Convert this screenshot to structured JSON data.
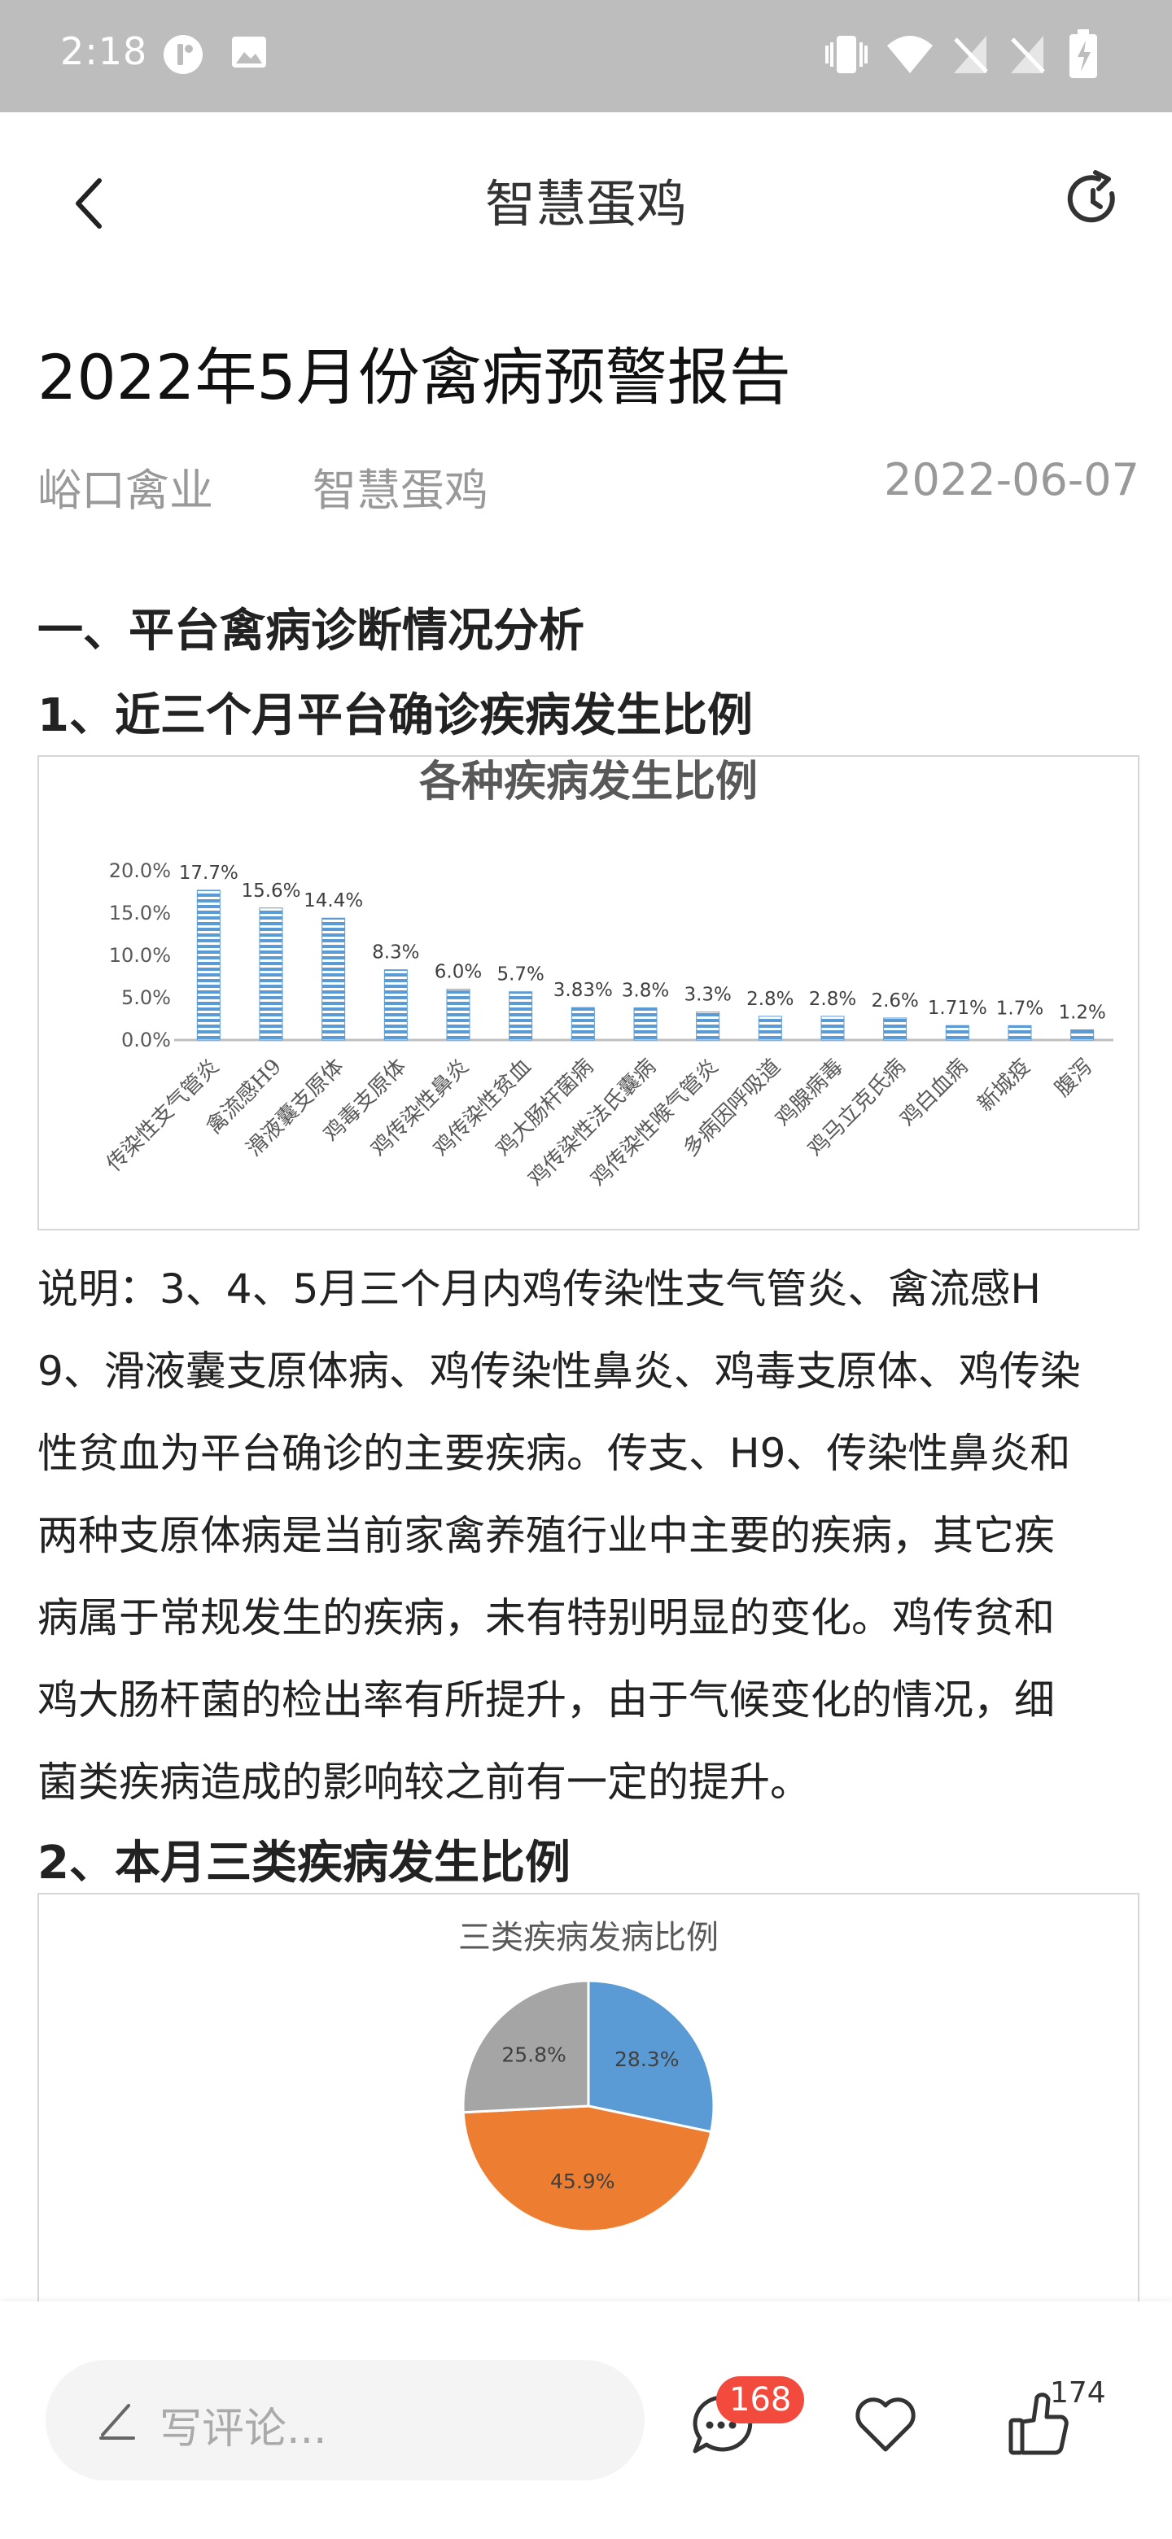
{
  "status_bar": {
    "time": "2:18"
  },
  "app_bar": {
    "title": "智慧蛋鸡"
  },
  "article": {
    "title": "2022年5月份禽病预警报告",
    "source": "峪口禽业",
    "channel": "智慧蛋鸡",
    "date": "2022-06-07",
    "section1_heading": "一、平台禽病诊断情况分析",
    "sub1_heading": "1、近三个月平台确诊疾病发生比例",
    "paragraph_lines": [
      "说明：3、4、5月三个月内鸡传染性支气管炎、禽流感H",
      "9、滑液囊支原体病、鸡传染性鼻炎、鸡毒支原体、鸡传染",
      "性贫血为平台确诊的主要疾病。传支、H9、传染性鼻炎和",
      "两种支原体病是当前家禽养殖行业中主要的疾病，其它疾",
      "病属于常规发生的疾病，未有特别明显的变化。鸡传贫和",
      "鸡大肠杆菌的检出率有所提升，由于气候变化的情况，细",
      "菌类疾病造成的影响较之前有一定的提升。"
    ],
    "sub2_heading": "2、本月三类疾病发生比例"
  },
  "chart_data": [
    {
      "type": "bar",
      "title": "各种疾病发生比例",
      "categories": [
        "传染性支气管炎",
        "禽流感H9",
        "滑液囊支原体",
        "鸡毒支原体",
        "鸡传染性鼻炎",
        "鸡传染性贫血",
        "鸡大肠杆菌病",
        "鸡传染性法氏囊病",
        "鸡传染性喉气管炎",
        "多病因呼吸道",
        "鸡腺病毒",
        "鸡马立克氏病",
        "鸡白血病",
        "新城疫",
        "腹泻"
      ],
      "values": [
        17.7,
        15.6,
        14.4,
        8.3,
        6.0,
        5.7,
        3.83,
        3.8,
        3.3,
        2.8,
        2.8,
        2.6,
        1.71,
        1.7,
        1.2
      ],
      "value_labels": [
        "17.7%",
        "15.6%",
        "14.4%",
        "8.3%",
        "6.0%",
        "5.7%",
        "3.83%",
        "3.8%",
        "3.3%",
        "2.8%",
        "2.8%",
        "2.6%",
        "1.71%",
        "1.7%",
        "1.2%"
      ],
      "y_ticks": [
        "0.0%",
        "5.0%",
        "10.0%",
        "15.0%",
        "20.0%"
      ],
      "ylim": [
        0,
        20
      ],
      "xlabel": "",
      "ylabel": "",
      "bar_color": "#5b9bd5"
    },
    {
      "type": "pie",
      "title": "三类疾病发病比例",
      "values": [
        28.3,
        45.9,
        25.8
      ],
      "labels": [
        "28.3%",
        "45.9%",
        "25.8%"
      ],
      "colors": [
        "#5b9bd5",
        "#ed7d31",
        "#a5a5a5"
      ]
    }
  ],
  "bottom_bar": {
    "comment_placeholder": "写评论...",
    "comment_count": "168",
    "like_count": "174"
  }
}
